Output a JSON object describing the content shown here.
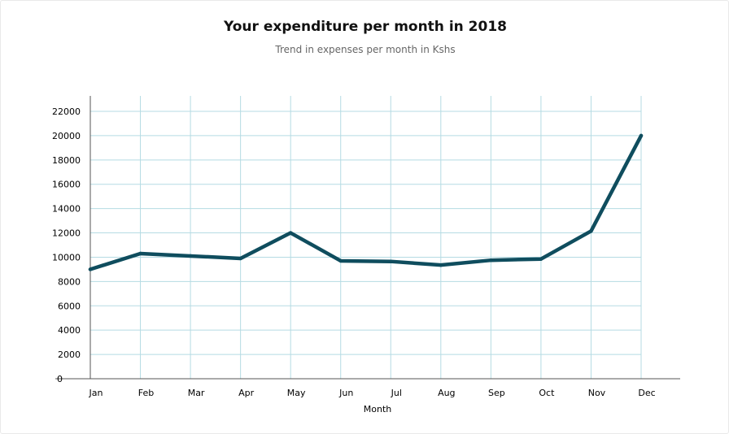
{
  "chart_data": {
    "type": "line",
    "title": "Your expenditure per month in 2018",
    "subtitle": "Trend in expenses per month in Kshs",
    "xlabel": "Month",
    "ylabel": "",
    "categories": [
      "Jan",
      "Feb",
      "Mar",
      "Apr",
      "May",
      "Jun",
      "Jul",
      "Aug",
      "Sep",
      "Oct",
      "Nov",
      "Dec"
    ],
    "series": [
      {
        "values": [
          9000,
          10300,
          10100,
          9900,
          12000,
          9700,
          9650,
          9350,
          9750,
          9850,
          12150,
          20000
        ]
      }
    ],
    "ylim": [
      0,
      22000
    ],
    "yticks": [
      0,
      2000,
      4000,
      6000,
      8000,
      10000,
      12000,
      14000,
      16000,
      18000,
      20000,
      22000
    ],
    "grid": true,
    "line_color": "#0f4d5e",
    "grid_color": "#b5dbe3"
  }
}
